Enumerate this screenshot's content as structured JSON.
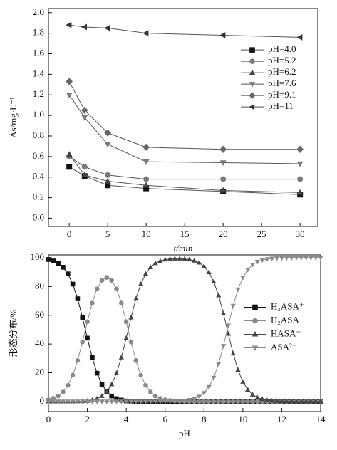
{
  "chart_data": [
    {
      "type": "line",
      "xlabel": "t/min",
      "ylabel": "As/mg·L⁻¹",
      "x": [
        0,
        2,
        5,
        10,
        20,
        30
      ],
      "xlim": [
        -2.7,
        32.3
      ],
      "xticks": [
        0,
        5,
        10,
        15,
        20,
        25,
        30
      ],
      "ylim": [
        -0.08,
        2.04
      ],
      "yticks": [
        {
          "value": 0,
          "label": "0.0"
        },
        0.2,
        0.4,
        0.6,
        0.8,
        {
          "value": 1,
          "label": "1.0"
        },
        1.2,
        1.4,
        1.6,
        1.8,
        {
          "value": 2,
          "label": "2.0"
        }
      ],
      "legend": "upper right",
      "series": [
        {
          "name": "pH=4.0",
          "color": "#111111",
          "marker": "square",
          "values": [
            0.5,
            0.41,
            0.32,
            0.29,
            0.26,
            0.23
          ]
        },
        {
          "name": "pH=5.2",
          "color": "#7a7a7a",
          "marker": "circle",
          "values": [
            0.6,
            0.5,
            0.42,
            0.38,
            0.38,
            0.38
          ]
        },
        {
          "name": "pH=6.2",
          "color": "#444444",
          "marker": "triangle-up",
          "values": [
            0.62,
            0.42,
            0.36,
            0.32,
            0.27,
            0.25
          ]
        },
        {
          "name": "pH=7.6",
          "color": "#7a7a7a",
          "marker": "triangle-down",
          "values": [
            1.2,
            0.98,
            0.72,
            0.55,
            0.54,
            0.53
          ]
        },
        {
          "name": "pH=9.1",
          "color": "#666666",
          "marker": "diamond",
          "values": [
            1.33,
            1.05,
            0.83,
            0.69,
            0.67,
            0.67
          ]
        },
        {
          "name": "pH=11",
          "color": "#333333",
          "marker": "triangle-left",
          "values": [
            1.88,
            1.86,
            1.85,
            1.8,
            1.78,
            1.76
          ]
        }
      ]
    },
    {
      "type": "line",
      "xlabel": "pH",
      "ylabel": "形态分布/%",
      "x": [
        0,
        0.25,
        0.5,
        0.75,
        1,
        1.25,
        1.5,
        1.75,
        2,
        2.25,
        2.5,
        2.75,
        3,
        3.25,
        3.5,
        3.75,
        4,
        4.25,
        4.5,
        4.75,
        5,
        5.25,
        5.5,
        5.75,
        6,
        6.25,
        6.5,
        6.75,
        7,
        7.25,
        7.5,
        7.75,
        8,
        8.25,
        8.5,
        8.75,
        9,
        9.25,
        9.5,
        9.75,
        10,
        10.25,
        10.5,
        10.75,
        11,
        11.25,
        11.5,
        11.75,
        12,
        12.25,
        12.5,
        12.75,
        13,
        13.25,
        13.5,
        13.75,
        14
      ],
      "xlim": [
        0,
        14
      ],
      "xticks": [
        0,
        2,
        4,
        6,
        8,
        10,
        12,
        14
      ],
      "ylim": [
        -7,
        102
      ],
      "yticks": [
        0,
        20,
        40,
        60,
        80,
        100
      ],
      "legend": "center right",
      "series": [
        {
          "name": "H₃ASA⁺",
          "color": "#111111",
          "marker": "square",
          "values": [
            98.8,
            97.8,
            96.2,
            93.4,
            88.8,
            81.7,
            71.5,
            58.4,
            44.1,
            30.6,
            19.7,
            11.9,
            6.9,
            3.8,
            2.0,
            1.0,
            0.4,
            0.2,
            0.1,
            0,
            0,
            0,
            0,
            0,
            0,
            0,
            0,
            0,
            0,
            0,
            0,
            0,
            0,
            0,
            0,
            0,
            0,
            0,
            0,
            0,
            0,
            0,
            0,
            0,
            0,
            0,
            0,
            0,
            0,
            0,
            0,
            0,
            0,
            0,
            0,
            0,
            0
          ]
        },
        {
          "name": "H₂ASA",
          "color": "#8a8a8a",
          "marker": "circle",
          "values": [
            1.2,
            2.2,
            3.8,
            6.6,
            11.2,
            18.3,
            28.5,
            41.4,
            55.5,
            68.5,
            78.4,
            84.3,
            86.3,
            84.3,
            78.4,
            68.5,
            55.5,
            41.4,
            28.5,
            18.3,
            11.2,
            6.6,
            3.8,
            2.2,
            1.2,
            0.7,
            0.4,
            0.2,
            0.1,
            0.1,
            0,
            0,
            0,
            0,
            0,
            0,
            0,
            0,
            0,
            0,
            0,
            0,
            0,
            0,
            0,
            0,
            0,
            0,
            0,
            0,
            0,
            0,
            0,
            0,
            0,
            0,
            0
          ]
        },
        {
          "name": "HASA⁻",
          "color": "#444444",
          "marker": "triangle-up",
          "values": [
            0,
            0,
            0,
            0,
            0,
            0,
            0.1,
            0.2,
            0.4,
            1.0,
            2.0,
            3.8,
            6.9,
            11.9,
            19.7,
            30.6,
            44.1,
            58.4,
            71.5,
            81.7,
            88.8,
            93.4,
            96.2,
            97.8,
            98.7,
            99.2,
            99.4,
            99.4,
            99.2,
            98.8,
            98.0,
            96.6,
            94.1,
            89.9,
            83.4,
            73.8,
            61.3,
            47.1,
            33.4,
            22.0,
            13.7,
            8.2,
            4.8,
            2.7,
            1.6,
            0.9,
            0.5,
            0.3,
            0.2,
            0.1,
            0.1,
            0,
            0,
            0,
            0,
            0,
            0
          ]
        },
        {
          "name": "ASA²⁻",
          "color": "#8a8a8a",
          "marker": "triangle-down",
          "values": [
            0,
            0,
            0,
            0,
            0,
            0,
            0,
            0,
            0,
            0,
            0,
            0,
            0,
            0,
            0,
            0,
            0,
            0,
            0,
            0,
            0,
            0,
            0,
            0,
            0.1,
            0.1,
            0.2,
            0.4,
            0.6,
            1.1,
            2.0,
            3.4,
            5.9,
            10.1,
            16.6,
            26.2,
            38.7,
            52.9,
            66.6,
            78.0,
            86.3,
            91.8,
            95.2,
            97.3,
            98.4,
            99.1,
            99.5,
            99.7,
            99.8,
            99.9,
            99.9,
            100,
            100,
            100,
            100,
            100,
            100
          ]
        }
      ]
    }
  ]
}
